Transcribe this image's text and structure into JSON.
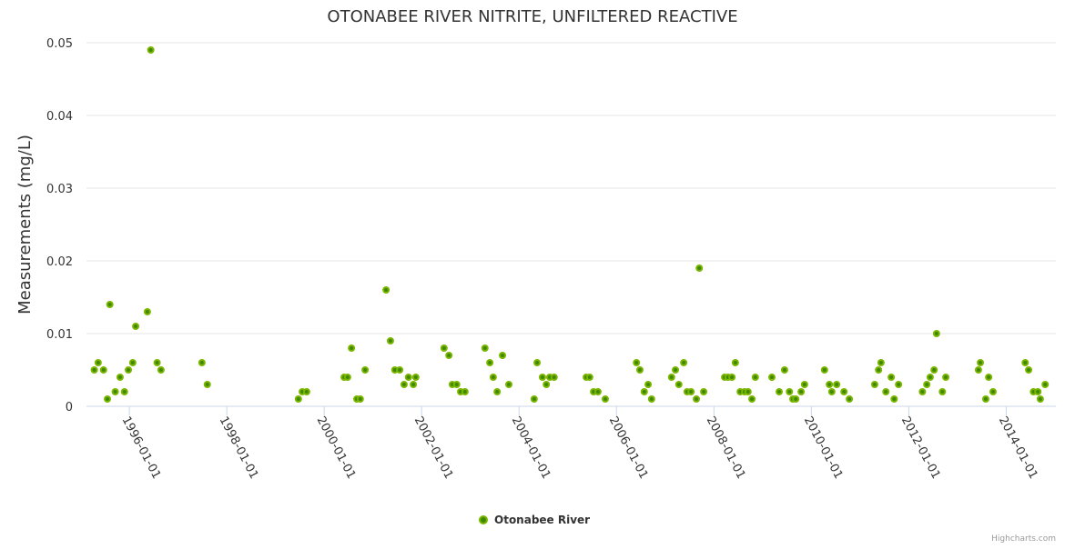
{
  "chart_data": {
    "type": "scatter",
    "title": "OTONABEE RIVER NITRITE, UNFILTERED REACTIVE",
    "xlabel": "",
    "ylabel": "Measurements (mg/L)",
    "ylim": [
      0,
      0.05
    ],
    "xlim": [
      1995.12,
      2015.02
    ],
    "x_unit": "decimal year",
    "yticks": [
      0,
      0.01,
      0.02,
      0.03,
      0.04,
      0.05
    ],
    "ytick_labels": [
      "0",
      "0.01",
      "0.02",
      "0.03",
      "0.04",
      "0.05"
    ],
    "xticks": [
      1996,
      1998,
      2000,
      2002,
      2004,
      2006,
      2008,
      2010,
      2012,
      2014
    ],
    "xtick_labels": [
      "1996-01-01",
      "1998-01-01",
      "2000-01-01",
      "2002-01-01",
      "2004-01-01",
      "2006-01-01",
      "2008-01-01",
      "2010-01-01",
      "2012-01-01",
      "2014-01-01"
    ],
    "grid": true,
    "legend_position": "bottom-center",
    "colors": {
      "marker": "#7cb500",
      "marker_center": "#3d8a00",
      "grid": "#e6e6e6",
      "axis": "#ccd6eb"
    },
    "series": [
      {
        "name": "Otonabee River",
        "points": [
          [
            1995.28,
            0.005
          ],
          [
            1995.36,
            0.006
          ],
          [
            1995.47,
            0.005
          ],
          [
            1995.55,
            0.001
          ],
          [
            1995.6,
            0.014
          ],
          [
            1995.71,
            0.002
          ],
          [
            1995.81,
            0.004
          ],
          [
            1995.9,
            0.002
          ],
          [
            1995.98,
            0.005
          ],
          [
            1996.07,
            0.006
          ],
          [
            1996.13,
            0.011
          ],
          [
            1996.37,
            0.013
          ],
          [
            1996.44,
            0.049
          ],
          [
            1996.57,
            0.006
          ],
          [
            1996.65,
            0.005
          ],
          [
            1997.49,
            0.006
          ],
          [
            1997.6,
            0.003
          ],
          [
            1999.47,
            0.001
          ],
          [
            1999.55,
            0.002
          ],
          [
            1999.64,
            0.002
          ],
          [
            2000.41,
            0.004
          ],
          [
            2000.48,
            0.004
          ],
          [
            2000.56,
            0.008
          ],
          [
            2000.67,
            0.001
          ],
          [
            2000.74,
            0.001
          ],
          [
            2000.84,
            0.005
          ],
          [
            2001.27,
            0.016
          ],
          [
            2001.36,
            0.009
          ],
          [
            2001.45,
            0.005
          ],
          [
            2001.55,
            0.005
          ],
          [
            2001.64,
            0.003
          ],
          [
            2001.73,
            0.004
          ],
          [
            2001.83,
            0.003
          ],
          [
            2001.88,
            0.004
          ],
          [
            2002.46,
            0.008
          ],
          [
            2002.56,
            0.007
          ],
          [
            2002.63,
            0.003
          ],
          [
            2002.72,
            0.003
          ],
          [
            2002.8,
            0.002
          ],
          [
            2002.89,
            0.002
          ],
          [
            2003.3,
            0.008
          ],
          [
            2003.4,
            0.006
          ],
          [
            2003.47,
            0.004
          ],
          [
            2003.55,
            0.002
          ],
          [
            2003.66,
            0.007
          ],
          [
            2003.79,
            0.003
          ],
          [
            2004.31,
            0.001
          ],
          [
            2004.37,
            0.006
          ],
          [
            2004.48,
            0.004
          ],
          [
            2004.56,
            0.003
          ],
          [
            2004.63,
            0.004
          ],
          [
            2004.72,
            0.004
          ],
          [
            2005.38,
            0.004
          ],
          [
            2005.45,
            0.004
          ],
          [
            2005.53,
            0.002
          ],
          [
            2005.62,
            0.002
          ],
          [
            2005.77,
            0.001
          ],
          [
            2006.41,
            0.006
          ],
          [
            2006.48,
            0.005
          ],
          [
            2006.57,
            0.002
          ],
          [
            2006.65,
            0.003
          ],
          [
            2006.72,
            0.001
          ],
          [
            2007.13,
            0.004
          ],
          [
            2007.21,
            0.005
          ],
          [
            2007.28,
            0.003
          ],
          [
            2007.38,
            0.006
          ],
          [
            2007.45,
            0.002
          ],
          [
            2007.53,
            0.002
          ],
          [
            2007.64,
            0.001
          ],
          [
            2007.7,
            0.019
          ],
          [
            2007.79,
            0.002
          ],
          [
            2008.22,
            0.004
          ],
          [
            2008.29,
            0.004
          ],
          [
            2008.37,
            0.004
          ],
          [
            2008.44,
            0.006
          ],
          [
            2008.54,
            0.002
          ],
          [
            2008.63,
            0.002
          ],
          [
            2008.7,
            0.002
          ],
          [
            2008.78,
            0.001
          ],
          [
            2008.85,
            0.004
          ],
          [
            2009.19,
            0.004
          ],
          [
            2009.34,
            0.002
          ],
          [
            2009.45,
            0.005
          ],
          [
            2009.55,
            0.002
          ],
          [
            2009.62,
            0.001
          ],
          [
            2009.68,
            0.001
          ],
          [
            2009.79,
            0.002
          ],
          [
            2009.86,
            0.003
          ],
          [
            2010.27,
            0.005
          ],
          [
            2010.37,
            0.003
          ],
          [
            2010.42,
            0.002
          ],
          [
            2010.52,
            0.003
          ],
          [
            2010.67,
            0.002
          ],
          [
            2010.78,
            0.001
          ],
          [
            2011.3,
            0.003
          ],
          [
            2011.38,
            0.005
          ],
          [
            2011.43,
            0.006
          ],
          [
            2011.53,
            0.002
          ],
          [
            2011.64,
            0.004
          ],
          [
            2011.7,
            0.001
          ],
          [
            2011.79,
            0.003
          ],
          [
            2012.28,
            0.002
          ],
          [
            2012.37,
            0.003
          ],
          [
            2012.44,
            0.004
          ],
          [
            2012.52,
            0.005
          ],
          [
            2012.57,
            0.01
          ],
          [
            2012.69,
            0.002
          ],
          [
            2012.76,
            0.004
          ],
          [
            2013.43,
            0.005
          ],
          [
            2013.47,
            0.006
          ],
          [
            2013.58,
            0.001
          ],
          [
            2013.64,
            0.004
          ],
          [
            2013.73,
            0.002
          ],
          [
            2014.39,
            0.006
          ],
          [
            2014.46,
            0.005
          ],
          [
            2014.56,
            0.002
          ],
          [
            2014.65,
            0.002
          ],
          [
            2014.7,
            0.001
          ],
          [
            2014.8,
            0.003
          ]
        ]
      }
    ]
  },
  "credits": "Highcharts.com"
}
